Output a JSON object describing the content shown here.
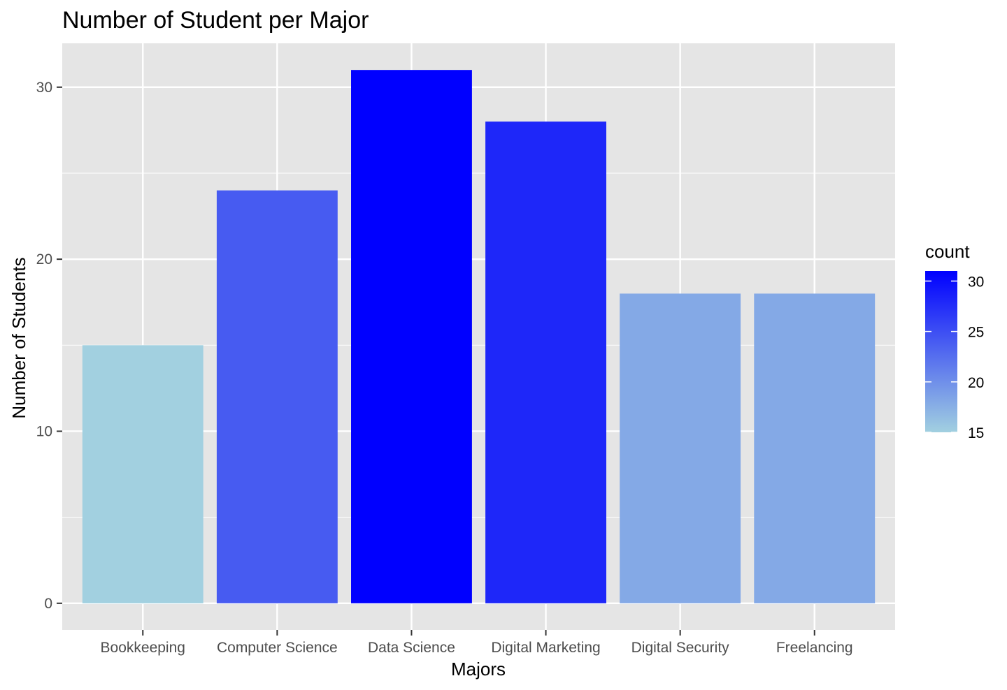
{
  "chart_data": {
    "type": "bar",
    "title": "Number of Student per Major",
    "xlabel": "Majors",
    "ylabel": "Number of Students",
    "categories": [
      "Bookkeeping",
      "Computer Science",
      "Data Science",
      "Digital Marketing",
      "Digital Security",
      "Freelancing"
    ],
    "values": [
      15,
      24,
      31,
      28,
      18,
      18
    ],
    "ylim": [
      -1.55,
      32.55
    ],
    "yticks": [
      0,
      10,
      20,
      30
    ],
    "grid": true,
    "legend": {
      "title": "count",
      "position": "right",
      "ticks": [
        15,
        20,
        25,
        30
      ],
      "range": [
        15,
        31
      ],
      "low_color": "#A2D0E0",
      "high_color": "#0000FF"
    },
    "colors": {
      "panel": "#E5E5E5",
      "gridline": "#FFFFFF",
      "bar_low": "#A2D0E0",
      "bar_high": "#0000FF"
    }
  }
}
